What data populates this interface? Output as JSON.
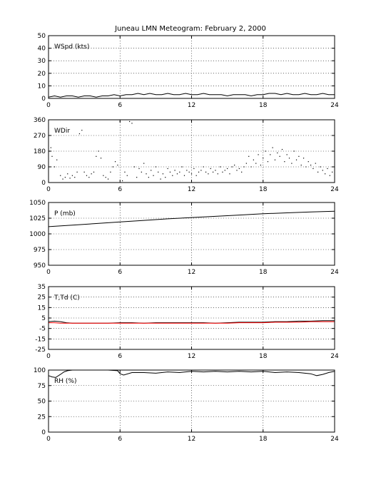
{
  "figure": {
    "title": "Juneau LMN Meteogram:  February  2, 2000"
  },
  "colors": {
    "axis": "#000000",
    "grid": "#000000",
    "line": "#000000",
    "dewpoint": "#ff0000"
  },
  "chart_data": [
    {
      "type": "line",
      "label": "WSpd (kts)",
      "xlim": [
        0,
        24
      ],
      "ylim": [
        0,
        50
      ],
      "xticks": [
        0,
        6,
        12,
        18,
        24
      ],
      "yticks": [
        0,
        10,
        20,
        30,
        40,
        50
      ],
      "grid": true,
      "series": [
        {
          "x": [
            0,
            0.5,
            1,
            1.5,
            2,
            2.5,
            3,
            3.5,
            4,
            4.5,
            5,
            5.5,
            6,
            6.5,
            7,
            7.5,
            8,
            8.5,
            9,
            9.5,
            10,
            10.5,
            11,
            11.5,
            12,
            12.5,
            13,
            13.5,
            14,
            14.5,
            15,
            15.5,
            16,
            16.5,
            17,
            17.5,
            18,
            18.5,
            19,
            19.5,
            20,
            20.5,
            21,
            21.5,
            22,
            22.5,
            23,
            23.5,
            24
          ],
          "y": [
            1,
            2,
            1,
            2,
            2,
            1,
            2,
            2,
            1,
            2,
            2,
            3,
            2,
            3,
            3,
            4,
            3,
            4,
            3,
            3,
            4,
            3,
            3,
            4,
            3,
            3,
            4,
            3,
            3,
            3,
            2,
            3,
            3,
            3,
            2,
            3,
            3,
            4,
            4,
            3,
            4,
            3,
            3,
            4,
            3,
            3,
            4,
            3,
            3
          ]
        }
      ]
    },
    {
      "type": "scatter",
      "label": "WDir",
      "xlim": [
        0,
        24
      ],
      "ylim": [
        0,
        360
      ],
      "xticks": [
        0,
        6,
        12,
        18,
        24
      ],
      "yticks": [
        0,
        90,
        180,
        270,
        360
      ],
      "grid": true,
      "series": [
        {
          "x": [
            0.1,
            0.2,
            0.3,
            0.5,
            0.7,
            1.0,
            1.2,
            1.4,
            1.6,
            1.8,
            2.0,
            2.2,
            2.4,
            2.6,
            2.8,
            3.0,
            3.2,
            3.4,
            3.6,
            3.8,
            4.0,
            4.2,
            4.4,
            4.6,
            4.8,
            5.0,
            5.2,
            5.4,
            5.6,
            5.8,
            6.0,
            6.2,
            6.4,
            6.6,
            6.8,
            7.0,
            7.2,
            7.4,
            7.6,
            7.8,
            8.0,
            8.2,
            8.4,
            8.6,
            8.8,
            9.0,
            9.2,
            9.4,
            9.6,
            9.8,
            10.0,
            10.2,
            10.4,
            10.6,
            10.8,
            11.0,
            11.2,
            11.4,
            11.6,
            11.8,
            12.0,
            12.2,
            12.4,
            12.6,
            12.8,
            13.0,
            13.2,
            13.4,
            13.6,
            13.8,
            14.0,
            14.2,
            14.4,
            14.6,
            14.8,
            15.0,
            15.2,
            15.4,
            15.6,
            15.8,
            16.0,
            16.2,
            16.4,
            16.6,
            16.8,
            17.0,
            17.2,
            17.4,
            17.6,
            17.8,
            18.0,
            18.2,
            18.4,
            18.6,
            18.8,
            19.0,
            19.2,
            19.4,
            19.6,
            19.8,
            20.0,
            20.2,
            20.4,
            20.6,
            20.8,
            21.0,
            21.2,
            21.4,
            21.6,
            21.8,
            22.0,
            22.2,
            22.4,
            22.6,
            22.8,
            23.0,
            23.2,
            23.4,
            23.6,
            23.8
          ],
          "y": [
            180,
            200,
            150,
            90,
            130,
            40,
            20,
            30,
            50,
            25,
            40,
            30,
            60,
            280,
            300,
            60,
            40,
            30,
            50,
            60,
            150,
            180,
            140,
            40,
            30,
            20,
            60,
            90,
            120,
            100,
            350,
            10,
            60,
            40,
            350,
            340,
            90,
            30,
            80,
            60,
            110,
            50,
            30,
            70,
            40,
            90,
            60,
            20,
            50,
            30,
            80,
            60,
            40,
            70,
            50,
            60,
            90,
            40,
            70,
            60,
            50,
            80,
            40,
            60,
            70,
            90,
            60,
            50,
            80,
            60,
            70,
            50,
            90,
            60,
            70,
            80,
            50,
            90,
            100,
            70,
            80,
            60,
            90,
            110,
            150,
            90,
            130,
            110,
            160,
            100,
            140,
            180,
            120,
            160,
            200,
            130,
            170,
            150,
            190,
            120,
            160,
            140,
            110,
            180,
            130,
            150,
            100,
            140,
            90,
            120,
            100,
            80,
            110,
            60,
            90,
            70,
            50,
            80,
            40,
            60
          ]
        }
      ]
    },
    {
      "type": "line",
      "label": "P (mb)",
      "xlim": [
        0,
        24
      ],
      "ylim": [
        950,
        1050
      ],
      "xticks": [
        0,
        6,
        12,
        18,
        24
      ],
      "yticks": [
        950,
        975,
        1000,
        1025,
        1050
      ],
      "grid": true,
      "series": [
        {
          "x": [
            0,
            2,
            4,
            6,
            8,
            10,
            12,
            14,
            16,
            18,
            20,
            22,
            24
          ],
          "y": [
            1011.5,
            1014,
            1016.5,
            1019,
            1021.5,
            1024,
            1026,
            1028,
            1030,
            1032,
            1033.5,
            1035,
            1036
          ]
        }
      ]
    },
    {
      "type": "line",
      "label": "T,Td (C)",
      "xlim": [
        0,
        24
      ],
      "ylim": [
        -25,
        35
      ],
      "xticks": [
        0,
        6,
        12,
        18,
        24
      ],
      "yticks": [
        -25,
        -15,
        -5,
        5,
        15,
        25,
        35
      ],
      "grid": true,
      "series": [
        {
          "x": [
            0,
            0.5,
            1,
            1.5,
            2,
            3,
            4,
            5,
            6,
            7,
            8,
            9,
            10,
            11,
            12,
            13,
            14,
            15,
            16,
            17,
            18,
            19,
            20,
            21,
            22,
            23,
            24
          ],
          "y": [
            1.5,
            2.0,
            1.5,
            0.5,
            0.0,
            0.0,
            0.0,
            0.0,
            0.5,
            0.5,
            0.0,
            0.5,
            0.5,
            0.5,
            0.5,
            0.5,
            0.0,
            0.5,
            1.0,
            1.0,
            1.0,
            1.5,
            1.5,
            2.0,
            2.0,
            2.5,
            2.5
          ]
        },
        {
          "x": [
            0,
            0.5,
            1,
            1.5,
            2,
            3,
            4,
            5,
            6,
            7,
            8,
            9,
            10,
            11,
            12,
            13,
            14,
            15,
            16,
            17,
            18,
            19,
            20,
            21,
            22,
            23,
            24
          ],
          "y": [
            0.5,
            0.5,
            0.0,
            0.0,
            0.0,
            0.0,
            0.0,
            0.0,
            0.0,
            0.0,
            0.0,
            0.0,
            0.0,
            0.0,
            0.0,
            0.0,
            0.0,
            0.0,
            0.5,
            0.5,
            0.5,
            1.0,
            1.0,
            1.0,
            1.5,
            1.5,
            1.5
          ]
        }
      ]
    },
    {
      "type": "line",
      "label": "RH (%)",
      "xlim": [
        0,
        24
      ],
      "ylim": [
        0,
        100
      ],
      "xticks": [
        0,
        6,
        12,
        18,
        24
      ],
      "yticks": [
        0,
        25,
        50,
        75,
        100
      ],
      "grid": true,
      "series": [
        {
          "x": [
            0,
            0.3,
            0.6,
            1.0,
            1.3,
            1.6,
            2.0,
            3,
            4,
            5,
            5.8,
            6.0,
            6.3,
            7,
            8,
            9,
            10,
            11,
            12,
            13,
            14,
            15,
            16,
            17,
            18,
            19,
            20,
            21,
            22,
            22.5,
            23,
            23.5,
            24
          ],
          "y": [
            91,
            89,
            88,
            93,
            97,
            99,
            100,
            100,
            100,
            100,
            99,
            94,
            92,
            96,
            96,
            95,
            97,
            96,
            98,
            97,
            98,
            97,
            98,
            97,
            98,
            96,
            97,
            96,
            94,
            91,
            93,
            96,
            98
          ]
        }
      ]
    }
  ]
}
